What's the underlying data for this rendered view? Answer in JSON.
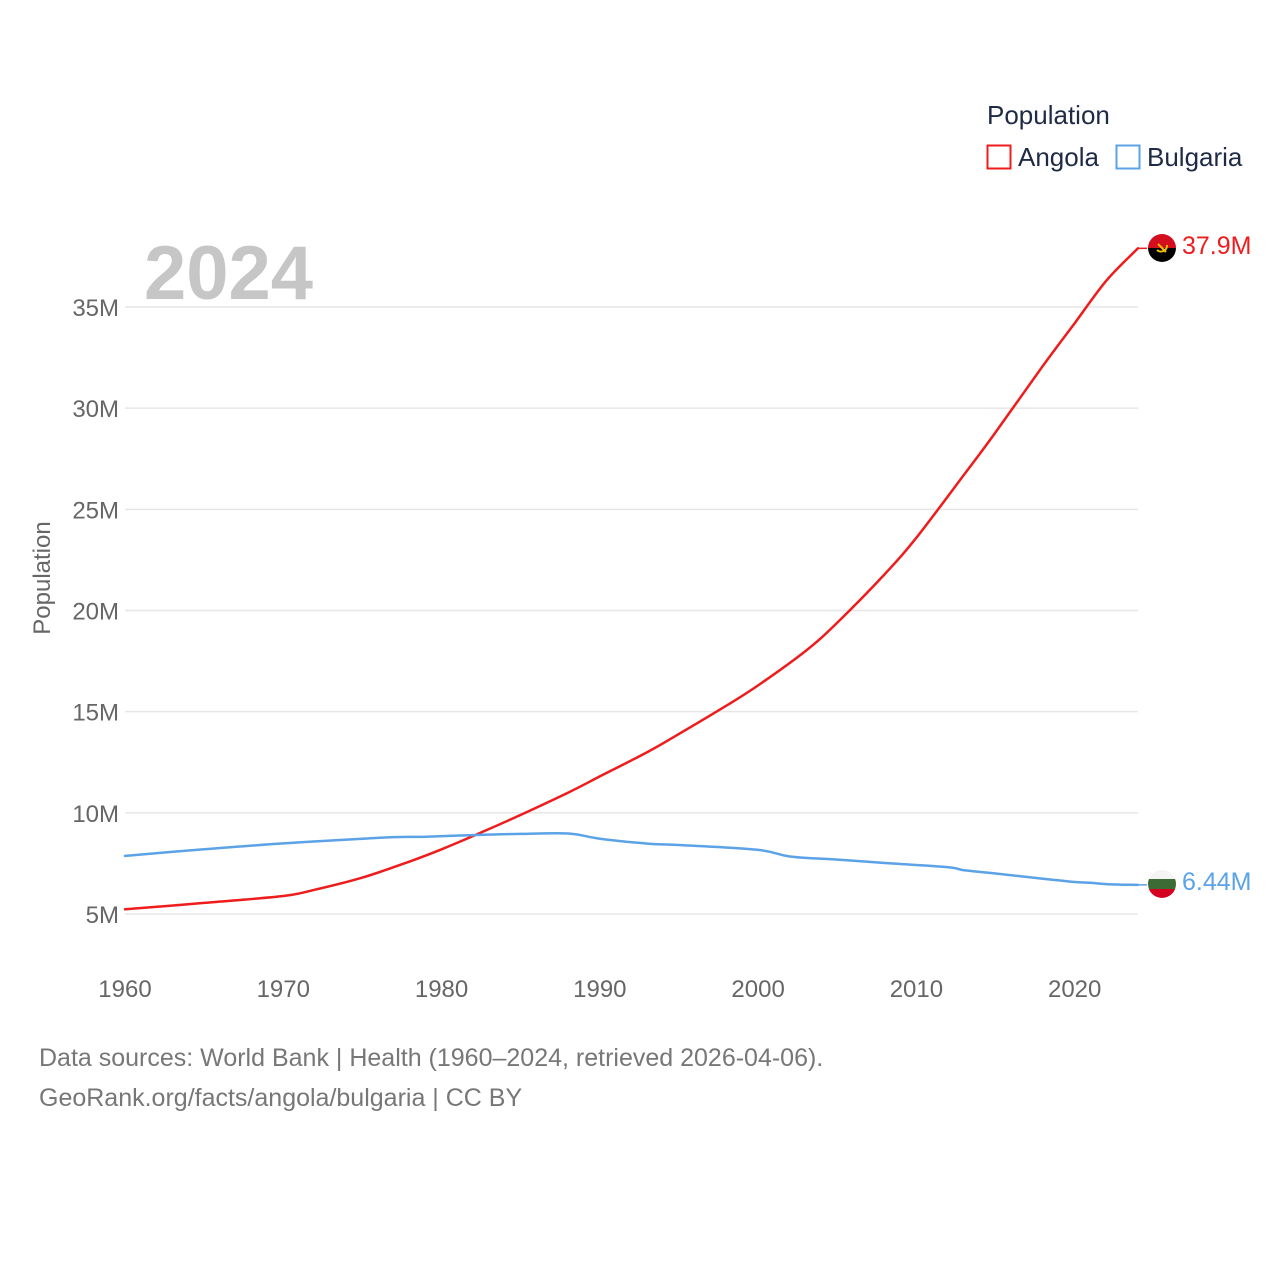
{
  "chart_data": {
    "type": "line",
    "title": "",
    "ylabel": "Population",
    "xlabel": "",
    "xlim": [
      1960,
      2024
    ],
    "ylim": [
      2700000,
      38300000
    ],
    "y_ticks": [
      5000000,
      10000000,
      15000000,
      20000000,
      25000000,
      30000000,
      35000000
    ],
    "y_tick_labels": [
      "5M",
      "10M",
      "15M",
      "20M",
      "25M",
      "30M",
      "35M"
    ],
    "x_ticks": [
      1960,
      1970,
      1980,
      1990,
      2000,
      2010,
      2020
    ],
    "x_tick_labels": [
      "1960",
      "1970",
      "1980",
      "1990",
      "2000",
      "2010",
      "2020"
    ],
    "grid": true,
    "current_year_label": "2024",
    "legend": {
      "title": "Population",
      "position": "top-right"
    },
    "series": [
      {
        "name": "Angola",
        "color": "#ee1c1c",
        "end_label": "37.9M",
        "flag": "angola-flag",
        "x": [
          1960,
          1965,
          1970,
          1972,
          1975,
          1978,
          1980,
          1983,
          1985,
          1988,
          1990,
          1993,
          1995,
          1998,
          2000,
          2003,
          2005,
          2008,
          2010,
          2013,
          2015,
          2018,
          2020,
          2022,
          2024
        ],
        "values": [
          5230000,
          5550000,
          5890000,
          6200000,
          6800000,
          7600000,
          8200000,
          9200000,
          9900000,
          11000000,
          11800000,
          13000000,
          13900000,
          15300000,
          16300000,
          18000000,
          19400000,
          21800000,
          23600000,
          26700000,
          28800000,
          32100000,
          34200000,
          36300000,
          37900000
        ]
      },
      {
        "name": "Bulgaria",
        "color": "#5ba3e6",
        "end_label": "6.44M",
        "flag": "bulgaria-flag",
        "x": [
          1960,
          1965,
          1970,
          1975,
          1977,
          1979,
          1982,
          1985,
          1988,
          1990,
          1993,
          1995,
          2000,
          2002,
          2005,
          2008,
          2012,
          2013,
          2015,
          2018,
          2019,
          2020,
          2021,
          2022,
          2023,
          2024
        ],
        "values": [
          7870000,
          8200000,
          8490000,
          8720000,
          8800000,
          8820000,
          8900000,
          8960000,
          8980000,
          8720000,
          8480000,
          8410000,
          8170000,
          7840000,
          7690000,
          7520000,
          7310000,
          7160000,
          7000000,
          6740000,
          6660000,
          6580000,
          6540000,
          6480000,
          6450000,
          6440000
        ]
      }
    ]
  },
  "footer": {
    "line1": "Data sources: World Bank | Health (1960–2024, retrieved 2026-04-06).",
    "line2": "GeoRank.org/facts/angola/bulgaria | CC BY"
  }
}
